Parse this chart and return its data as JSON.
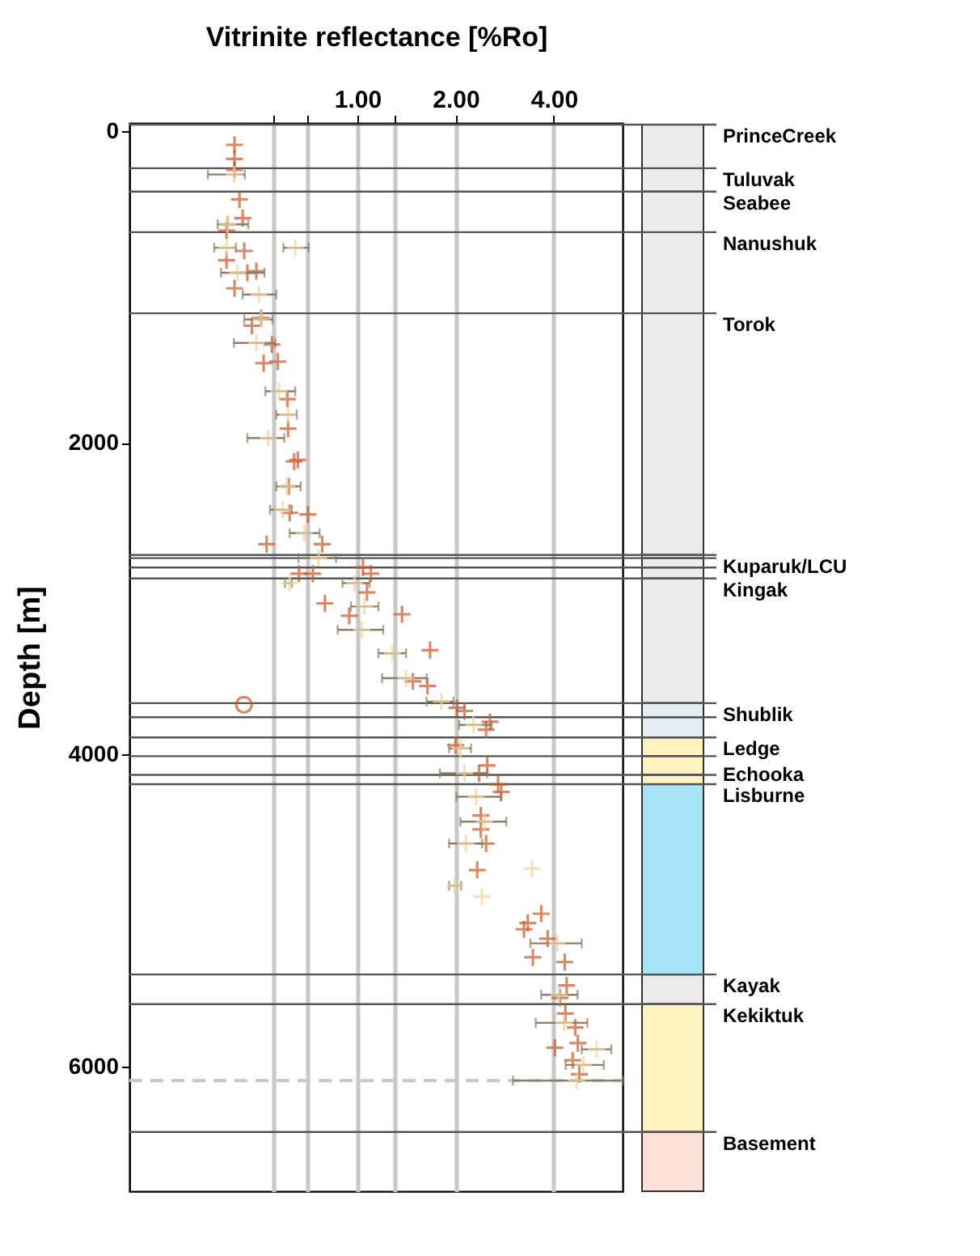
{
  "chart_data": {
    "type": "scatter",
    "xlabel": "Vitrinite reflectance [%Ro]",
    "ylabel": "Depth [m]",
    "log": "x",
    "grid": "x",
    "marker": "cross",
    "xlim": [
      0.2,
      6.5
    ],
    "xticks": [
      {
        "value": 0.55,
        "label": null
      },
      {
        "value": 0.7,
        "label": null
      },
      {
        "value": 1,
        "label": "1.00"
      },
      {
        "value": 1.3,
        "label": null
      },
      {
        "value": 2,
        "label": "2.00"
      },
      {
        "value": 4,
        "label": "4.00"
      }
    ],
    "ylim": [
      6800,
      -50
    ],
    "yticks": [
      0,
      2000,
      4000,
      6000
    ],
    "series": [
      {
        "color": "#c8582a",
        "x": [
          0.42,
          0.42,
          0.42,
          0.435,
          0.445,
          0.4,
          0.397,
          0.45,
          0.397,
          0.46,
          0.49,
          0.42,
          0.507,
          0.475,
          0.547,
          0.516,
          0.57,
          0.61,
          0.613,
          0.657,
          0.64,
          0.616,
          0.62,
          0.705,
          0.527,
          0.78,
          0.662,
          0.73,
          1.04,
          1.1,
          1.07,
          0.795,
          0.944,
          1.37,
          1.67,
          1.48,
          1.64,
          2.02,
          2.13,
          2.55,
          2.48,
          2.0,
          2.5,
          2.36,
          2.7,
          2.76,
          2.39,
          2.39,
          2.48,
          2.33,
          3.66,
          3.33,
          3.24,
          3.83,
          3.45,
          4.32,
          4.38,
          4.18,
          4.34,
          4.65,
          4.74,
          4.03,
          4.57,
          4.79
        ],
        "values": [
          90,
          180,
          250,
          440,
          560,
          600,
          640,
          770,
          830,
          910,
          900,
          1010,
          1200,
          1250,
          1370,
          1490,
          1480,
          1720,
          1910,
          2110,
          2120,
          2280,
          2450,
          2460,
          2650,
          2650,
          2840,
          2840,
          2800,
          2840,
          2960,
          3030,
          3110,
          3100,
          3330,
          3530,
          3560,
          3700,
          3720,
          3790,
          3840,
          3940,
          4070,
          4120,
          4190,
          4240,
          4390,
          4480,
          4570,
          4740,
          5020,
          5080,
          5120,
          5180,
          5300,
          5330,
          5480,
          5560,
          5660,
          5750,
          5850,
          5880,
          5960,
          6050
        ]
      },
      {
        "color": "#f0d4a4",
        "x": [
          0.419,
          0.4,
          0.397,
          0.645,
          0.429,
          0.499,
          0.507,
          0.49,
          0.575,
          0.613,
          0.533,
          0.609,
          0.59,
          0.688,
          0.76,
          0.62,
          0.98,
          1.05,
          1.03,
          1.28,
          1.41,
          1.81,
          2.27,
          2.07,
          2.13,
          2.31,
          2.45,
          2.15,
          3.43,
          1.99,
          2.41,
          4.1,
          4.15,
          4.3,
          5.41,
          4.93,
          4.7
        ],
        "values": [
          280,
          600,
          750,
          750,
          910,
          1050,
          1210,
          1360,
          1670,
          1820,
          1970,
          2280,
          2430,
          2580,
          2740,
          2900,
          2900,
          3050,
          3200,
          3350,
          3510,
          3660,
          3810,
          3960,
          4120,
          4270,
          4430,
          4570,
          4730,
          4840,
          4910,
          5210,
          5540,
          5720,
          5890,
          5990,
          6090
        ],
        "xerrors": [
          [
            0.348,
            0.452
          ],
          [
            0.373,
            0.463
          ],
          [
            0.364,
            0.424
          ],
          [
            0.593,
            0.709
          ],
          [
            0.382,
            0.519
          ],
          [
            0.445,
            0.564
          ],
          [
            0.45,
            0.549
          ],
          [
            0.418,
            0.56
          ],
          [
            0.522,
            0.645
          ],
          [
            0.564,
            0.652
          ],
          [
            0.46,
            0.597
          ],
          [
            0.564,
            0.67
          ],
          [
            0.54,
            0.63
          ],
          [
            0.62,
            0.766
          ],
          [
            0.66,
            0.86
          ],
          [
            0.6,
            0.63
          ],
          [
            0.9,
            1.09
          ],
          [
            0.955,
            1.16
          ],
          [
            0.87,
            1.2
          ],
          [
            1.16,
            1.41
          ],
          [
            1.19,
            1.63
          ],
          [
            1.63,
            1.97
          ],
          [
            2.05,
            2.58
          ],
          [
            1.91,
            2.23
          ],
          [
            1.79,
            2.5
          ],
          [
            2.01,
            2.75
          ],
          [
            2.07,
            2.86
          ],
          [
            1.91,
            2.41
          ],
          null,
          [
            1.91,
            2.08
          ],
          null,
          [
            3.39,
            4.87
          ],
          [
            3.66,
            4.73
          ],
          [
            3.52,
            5.07
          ],
          [
            4.87,
            6.0
          ],
          [
            4.35,
            5.69
          ],
          [
            3.0,
            6.5
          ]
        ]
      },
      {
        "color": "#c8582a",
        "marker": "circle",
        "x": [
          0.449
        ],
        "values": [
          3680
        ]
      }
    ],
    "ref_lines": [
      {
        "axis": "y",
        "value": -40,
        "label": "PrinceCreek"
      },
      {
        "axis": "y",
        "value": 240,
        "label": "Tuluvak"
      },
      {
        "axis": "y",
        "value": 390,
        "label": "Seabee"
      },
      {
        "axis": "y",
        "value": 650,
        "label": "Nanushuk"
      },
      {
        "axis": "y",
        "value": 1170,
        "label": "Torok"
      },
      {
        "axis": "y",
        "value": 2720,
        "label": "Kuparuk/LCU"
      },
      {
        "axis": "y",
        "value": 2740
      },
      {
        "axis": "y",
        "value": 2800
      },
      {
        "axis": "y",
        "value": 2870,
        "label": "Kingak"
      },
      {
        "axis": "y",
        "value": 3670,
        "label": "Shublik"
      },
      {
        "axis": "y",
        "value": 3760
      },
      {
        "axis": "y",
        "value": 3890,
        "label": "Ledge"
      },
      {
        "axis": "y",
        "value": 4010
      },
      {
        "axis": "y",
        "value": 4130,
        "label": "Echooka"
      },
      {
        "axis": "y",
        "value": 4190,
        "label": "Lisburne"
      },
      {
        "axis": "y",
        "value": 5410,
        "label": "Kayak"
      },
      {
        "axis": "y",
        "value": 5600,
        "label": "Kekiktuk"
      },
      {
        "axis": "y",
        "value": 6090,
        "color": "#c8c8c8",
        "line_style": "dashed"
      },
      {
        "axis": "y",
        "value": 6420,
        "label": "Basement"
      }
    ]
  }
}
